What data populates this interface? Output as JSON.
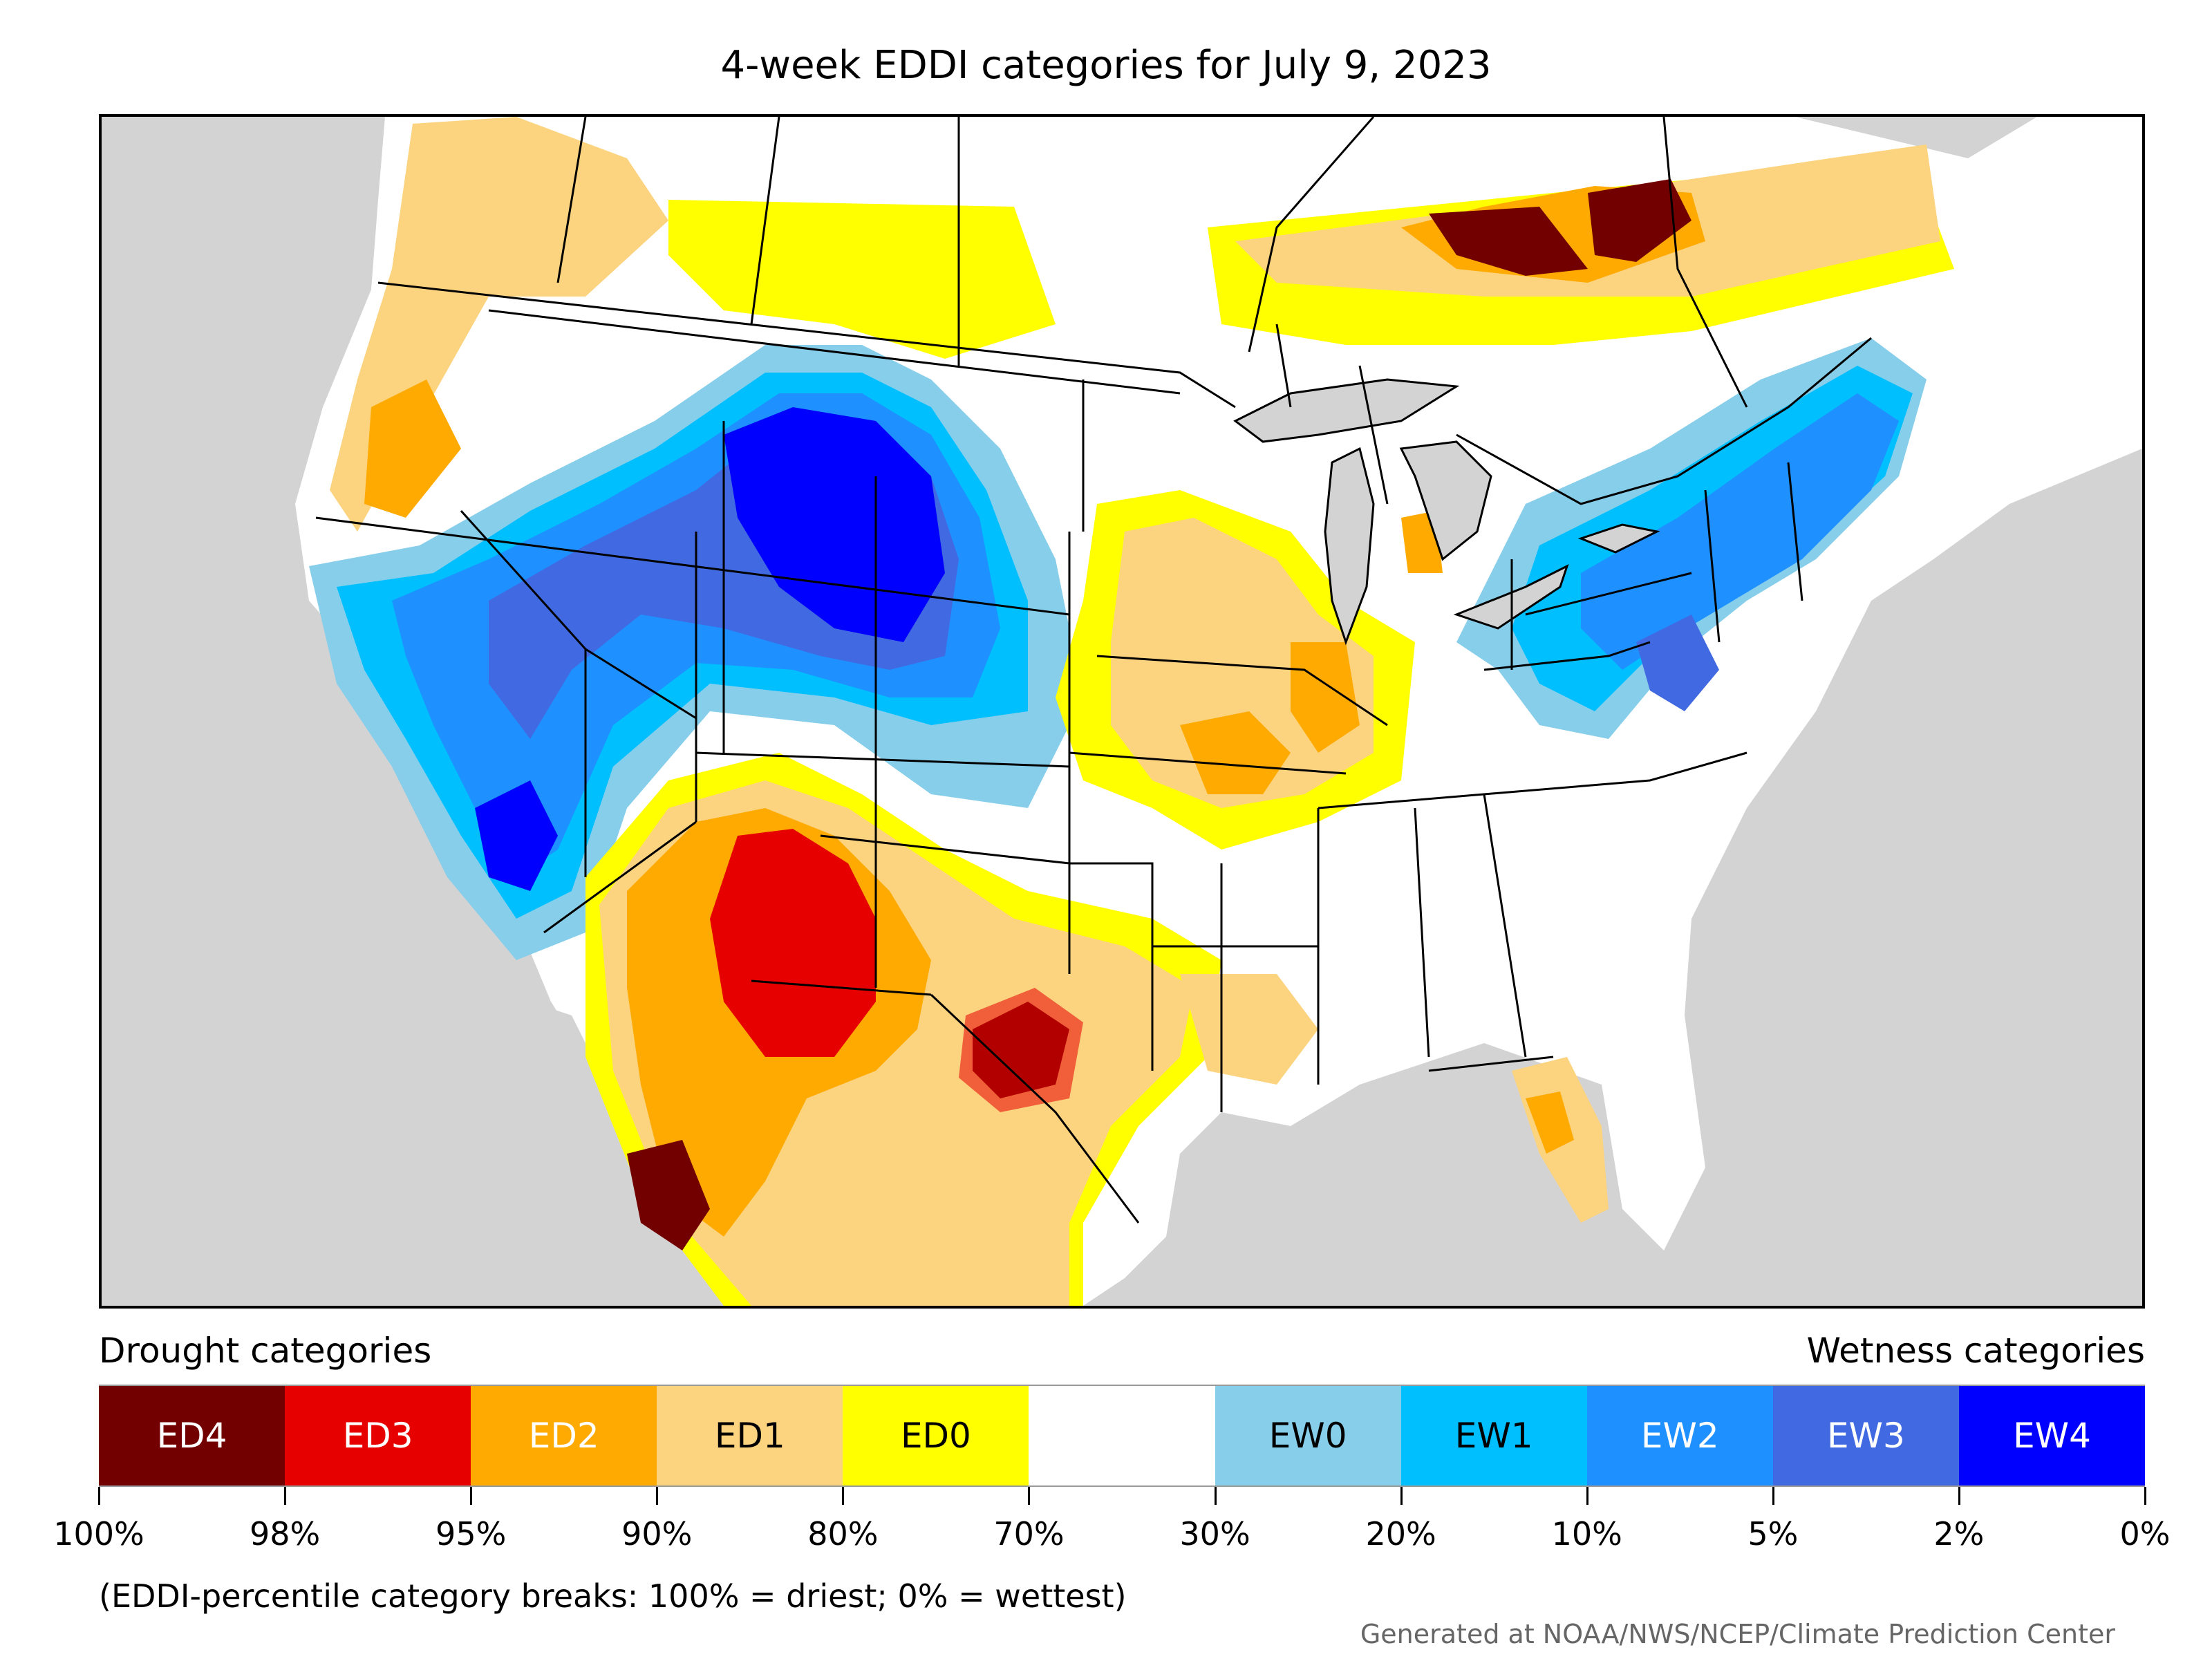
{
  "title": "4-week EDDI categories for July 9, 2023",
  "legend": {
    "left_heading": "Drought categories",
    "right_heading": "Wetness categories",
    "categories": [
      {
        "label": "ED4",
        "color": "#730000",
        "text_color": "#ffffff"
      },
      {
        "label": "ED3",
        "color": "#e60000",
        "text_color": "#ffffff"
      },
      {
        "label": "ED2",
        "color": "#ffaa00",
        "text_color": "#ffffff"
      },
      {
        "label": "ED1",
        "color": "#fcd37f",
        "text_color": "#000000"
      },
      {
        "label": "ED0",
        "color": "#ffff00",
        "text_color": "#000000"
      },
      {
        "label": "",
        "color": "#ffffff",
        "text_color": "#000000"
      },
      {
        "label": "EW0",
        "color": "#87ceeb",
        "text_color": "#000000"
      },
      {
        "label": "EW1",
        "color": "#00bfff",
        "text_color": "#000000"
      },
      {
        "label": "EW2",
        "color": "#1e90ff",
        "text_color": "#ffffff"
      },
      {
        "label": "EW3",
        "color": "#4169e1",
        "text_color": "#ffffff"
      },
      {
        "label": "EW4",
        "color": "#0000ff",
        "text_color": "#ffffff"
      }
    ],
    "breaks": [
      "100%",
      "98%",
      "95%",
      "90%",
      "80%",
      "70%",
      "30%",
      "20%",
      "10%",
      "5%",
      "2%",
      "0%"
    ]
  },
  "note": "(EDDI-percentile category breaks: 100% = driest; 0% = wettest)",
  "credit": "Generated at NOAA/NWS/NCEP/Climate Prediction Center",
  "map": {
    "background_color": "#d3d3d3",
    "land_color": "#ffffff",
    "border_color": "#000000"
  }
}
